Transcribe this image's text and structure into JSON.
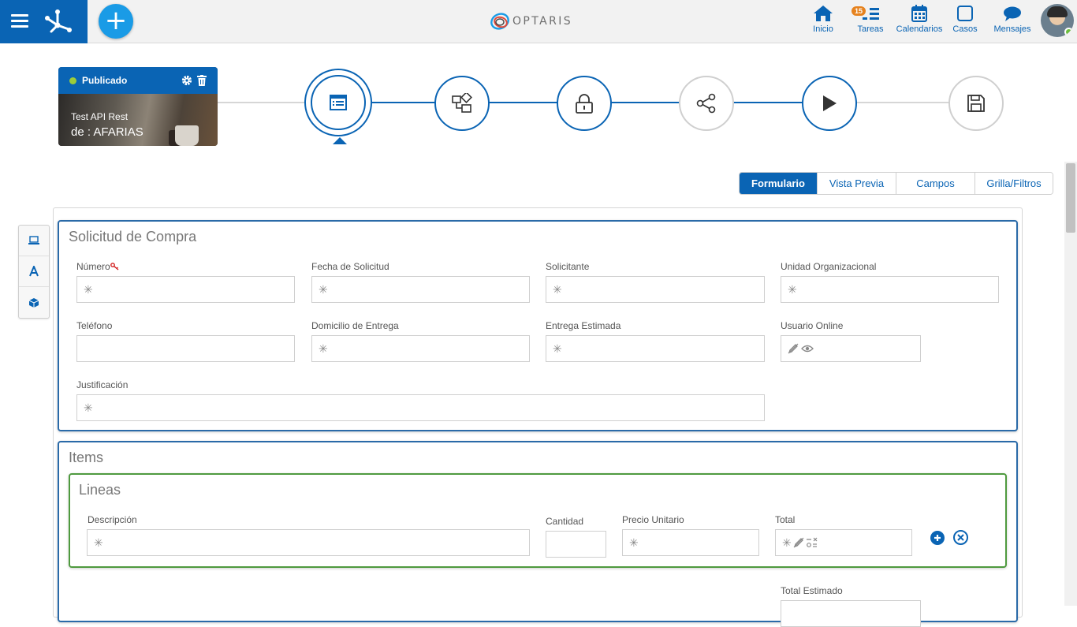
{
  "topbar": {
    "brand_name": "OPTARIS",
    "add_label": "+",
    "nav": [
      {
        "label": "Inicio",
        "icon": "home-icon"
      },
      {
        "label": "Tareas",
        "icon": "tasks-icon",
        "badge": "15"
      },
      {
        "label": "Calendarios",
        "icon": "calendar-icon"
      },
      {
        "label": "Casos",
        "icon": "cases-icon"
      },
      {
        "label": "Mensajes",
        "icon": "messages-icon"
      }
    ],
    "user_status_color": "#6cbf3c"
  },
  "process_card": {
    "status": "Publicado",
    "title": "Test API Rest",
    "author": "de : AFARIAS"
  },
  "steps": [
    {
      "icon": "form-icon",
      "state": "active"
    },
    {
      "icon": "shapes-icon",
      "state": "done"
    },
    {
      "icon": "lock-icon",
      "state": "done"
    },
    {
      "icon": "share-icon",
      "state": "pending"
    },
    {
      "icon": "play-icon",
      "state": "done"
    },
    {
      "icon": "save-icon",
      "state": "pending"
    }
  ],
  "tabs": [
    "Formulario",
    "Vista Previa",
    "Campos",
    "Grilla/Filtros"
  ],
  "active_tab": "Formulario",
  "form": {
    "section1_title": "Solicitud de Compra",
    "fields": {
      "numero": "Número",
      "fecha": "Fecha de Solicitud",
      "solicitante": "Solicitante",
      "unidad": "Unidad Organizacional",
      "telefono": "Teléfono",
      "domicilio": "Domicilio de Entrega",
      "entrega": "Entrega Estimada",
      "usuario": "Usuario Online",
      "justificacion": "Justificación"
    },
    "required_marker": "✳",
    "section2_title": "Items",
    "grid_title": "Lineas",
    "grid_fields": {
      "descripcion": "Descripción",
      "cantidad": "Cantidad",
      "precio": "Precio Unitario",
      "total": "Total"
    },
    "total_estimado": "Total Estimado"
  },
  "colors": {
    "primary": "#0a64b4",
    "accent": "#1a9be6",
    "grid_border": "#4f9a3f",
    "badge": "#e6821e"
  }
}
